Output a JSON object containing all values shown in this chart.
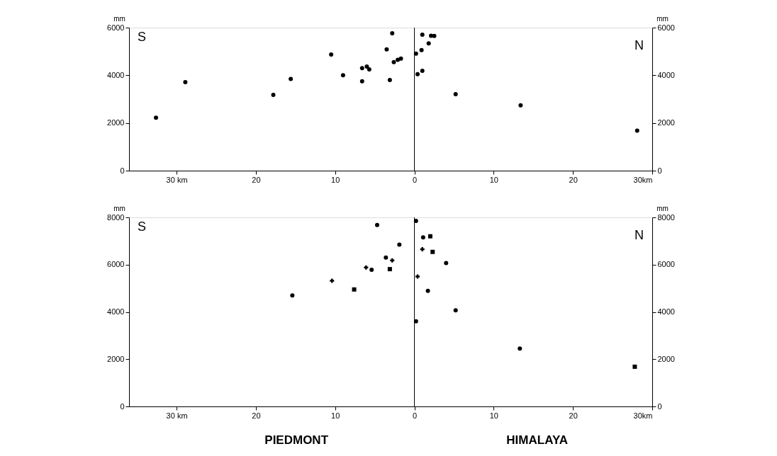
{
  "chart_data": [
    {
      "type": "scatter",
      "grid": false,
      "xlim": [
        -36,
        30
      ],
      "xticks": [
        {
          "value": -30,
          "label": "30 km"
        },
        {
          "value": -20,
          "label": "20"
        },
        {
          "value": -10,
          "label": "10"
        },
        0,
        {
          "value": 10,
          "label": "10"
        },
        {
          "value": 20,
          "label": "20"
        },
        {
          "value": 30,
          "label": "30km"
        }
      ],
      "ylim": [
        0,
        6000
      ],
      "yticks": [
        0,
        2000,
        4000,
        6000
      ],
      "y2lim": [
        0,
        6000
      ],
      "y2ticks": [
        0,
        2000,
        4000,
        6000
      ],
      "ylabel": "mm",
      "y2label": "mm",
      "ref_lines": [
        {
          "axis": "x",
          "value": 0,
          "color": "#000000"
        }
      ],
      "annotations": [
        "S",
        "N"
      ],
      "series": [
        {
          "color": "#000000",
          "marker": "circle",
          "x": [
            -32.6,
            -28.9,
            -17.8,
            -15.6,
            -10.5,
            -9.0,
            -6.6,
            -6.6,
            -6.0,
            -5.7,
            -3.5,
            -2.8,
            -3.1,
            -2.6,
            -2.1,
            -1.7,
            0.2,
            0.4,
            0.9,
            1.0,
            1.0,
            1.8,
            2.1,
            2.5,
            5.2,
            13.4,
            28.1
          ],
          "values": [
            2220,
            3710,
            3180,
            3850,
            4870,
            4000,
            3750,
            4300,
            4370,
            4250,
            5090,
            5760,
            3800,
            4550,
            4650,
            4700,
            4910,
            4050,
            5060,
            5700,
            4190,
            5340,
            5660,
            5650,
            3210,
            2740,
            1680
          ]
        }
      ]
    },
    {
      "type": "scatter",
      "grid": false,
      "xlim": [
        -36,
        30
      ],
      "xticks": [
        {
          "value": -30,
          "label": "30 km"
        },
        {
          "value": -20,
          "label": "20"
        },
        {
          "value": -10,
          "label": "10"
        },
        0,
        {
          "value": 10,
          "label": "10"
        },
        {
          "value": 20,
          "label": "20"
        },
        {
          "value": 30,
          "label": "30km"
        }
      ],
      "ylim": [
        0,
        8000
      ],
      "yticks": [
        0,
        2000,
        4000,
        6000,
        8000
      ],
      "y2lim": [
        0,
        8000
      ],
      "y2ticks": [
        0,
        2000,
        4000,
        6000,
        8000
      ],
      "ylabel": "mm",
      "y2label": "mm",
      "ref_lines": [
        {
          "axis": "x",
          "value": 0,
          "color": "#000000"
        }
      ],
      "annotations": [
        "S",
        "N",
        "PIEDMONT",
        "HIMALAYA"
      ],
      "series": [
        {
          "color": "#000000",
          "marker": "circle",
          "x": [
            -15.4,
            -5.4,
            -4.7,
            -3.6,
            -1.9,
            0.2,
            0.2,
            1.1,
            1.7,
            4.0,
            5.2,
            13.3
          ],
          "values": [
            4700,
            5780,
            7680,
            6300,
            6850,
            7850,
            3600,
            7150,
            4890,
            6070,
            4070,
            2450
          ]
        },
        {
          "color": "#000000",
          "marker": "square",
          "x": [
            -7.6,
            -3.1,
            2.0,
            2.3,
            27.8
          ],
          "values": [
            4950,
            5810,
            7200,
            6540,
            1680
          ]
        },
        {
          "color": "#000000",
          "marker": "cross",
          "x": [
            -10.4,
            -6.1,
            -2.8,
            0.4,
            1.0
          ],
          "values": [
            5320,
            5880,
            6180,
            5500,
            6650
          ]
        }
      ]
    }
  ]
}
